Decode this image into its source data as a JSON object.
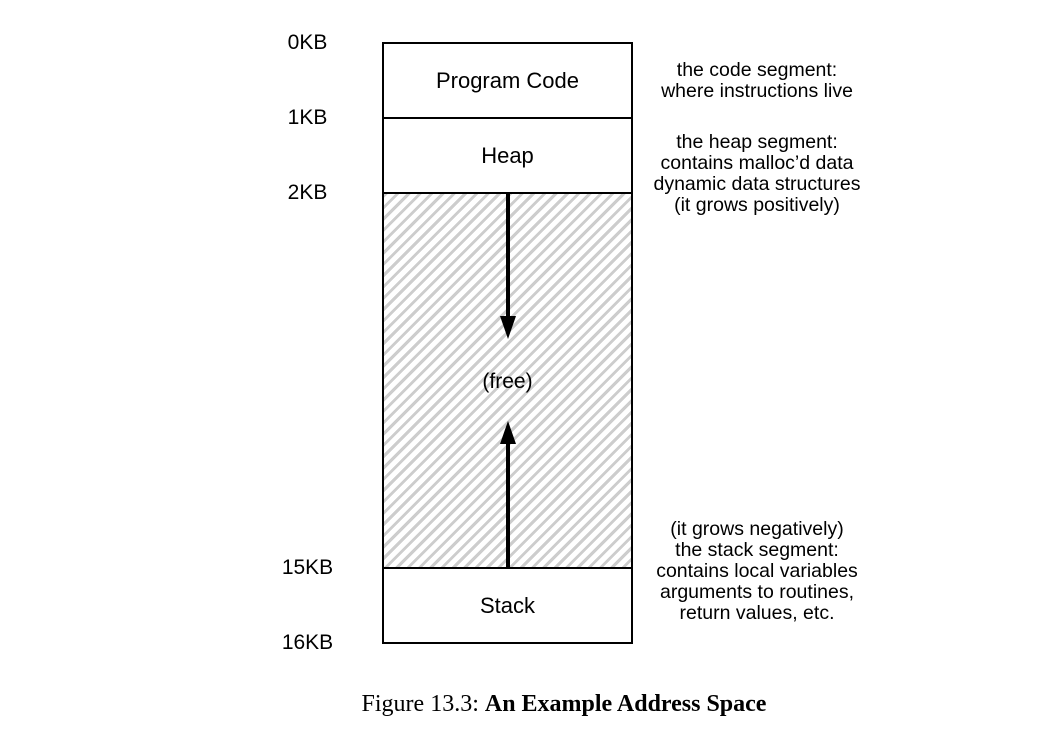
{
  "addresses": {
    "a0": "0KB",
    "a1": "1KB",
    "a2": "2KB",
    "a15": "15KB",
    "a16": "16KB"
  },
  "segments": {
    "code": "Program Code",
    "heap": "Heap",
    "free": "(free)",
    "stack": "Stack"
  },
  "notes": {
    "code": [
      "the code segment:",
      "where instructions live"
    ],
    "heap": [
      "the heap segment:",
      "contains malloc’d data",
      "dynamic data structures",
      "(it grows positively)"
    ],
    "stack": [
      "(it grows negatively)",
      "the stack segment:",
      "contains local variables",
      "arguments to routines,",
      "return values, etc."
    ]
  },
  "caption": {
    "prefix": "Figure 13.3:",
    "title": "An Example Address Space"
  },
  "colors": {
    "border": "#000000",
    "hatch": "#cdcdcd",
    "background": "#ffffff"
  }
}
